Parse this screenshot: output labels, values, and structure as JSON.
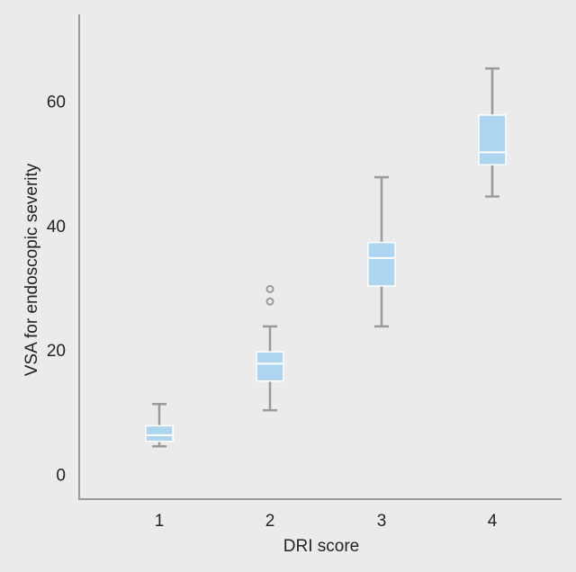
{
  "chart_data": {
    "type": "box",
    "xlabel": "DRI score",
    "ylabel": "VSA for endoscopic severity",
    "ylim": [
      -4,
      74
    ],
    "yticks": [
      0,
      20,
      40,
      60
    ],
    "categories": [
      "1",
      "2",
      "3",
      "4"
    ],
    "boxes": [
      {
        "category": "1",
        "whisker_low": 4.5,
        "q1": 5.3,
        "median": 6.3,
        "q3": 7.8,
        "whisker_high": 11.3,
        "outliers": []
      },
      {
        "category": "2",
        "whisker_low": 10.3,
        "q1": 15,
        "median": 17.8,
        "q3": 19.7,
        "whisker_high": 23.8,
        "outliers": [
          27.8,
          29.8
        ]
      },
      {
        "category": "3",
        "whisker_low": 23.8,
        "q1": 30.3,
        "median": 34.8,
        "q3": 37.3,
        "whisker_high": 47.8,
        "outliers": []
      },
      {
        "category": "4",
        "whisker_low": 44.7,
        "q1": 49.8,
        "median": 51.8,
        "q3": 57.8,
        "whisker_high": 65.3,
        "outliers": []
      }
    ],
    "grid": false,
    "legend": "none"
  },
  "colors": {
    "background": "#ebebeb",
    "box_fill": "#aed5f0",
    "box_stroke": "#ffffff",
    "median": "#ffffff",
    "whisker": "#9a9a9a",
    "outlier": "#9a9a9a",
    "axis": "#9a9a9a",
    "text": "#222222"
  }
}
